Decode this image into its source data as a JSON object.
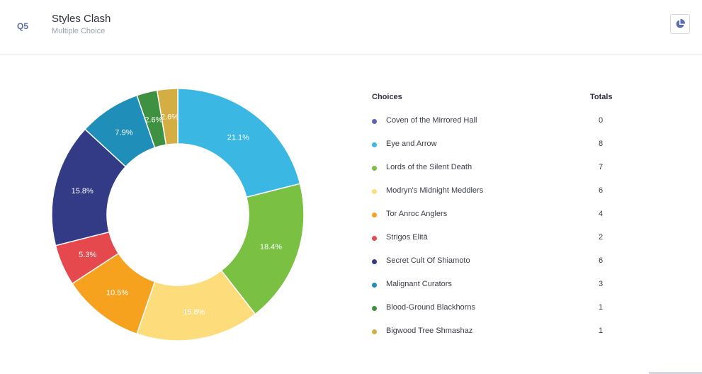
{
  "question": {
    "number": "Q5",
    "title": "Styles Clash",
    "type": "Multiple Choice"
  },
  "toolbar": {
    "chart_toggle_icon": "pie-chart-icon",
    "accent": "#5b6bb5"
  },
  "legend": {
    "choices_header": "Choices",
    "totals_header": "Totals"
  },
  "chart_data": {
    "type": "pie",
    "donut": true,
    "categories": [
      "Coven of the Mirrored Hall",
      "Eye and Arrow",
      "Lords of the Silent Death",
      "Modryn's Midnight Meddlers",
      "Tor Anroc Anglers",
      "Strigos Elitā",
      "Secret Cult Of Shiamoto",
      "Malignant Curators",
      "Blood-Ground Blackhorns",
      "Bigwood Tree Shmashaz"
    ],
    "values": [
      0,
      8,
      7,
      6,
      4,
      2,
      6,
      3,
      1,
      1
    ],
    "labels": [
      "",
      "21.1%",
      "18.4%",
      "15.8%",
      "10.5%",
      "5.3%",
      "15.8%",
      "7.9%",
      "2.6%",
      "2.6%"
    ],
    "colors": [
      "#5e63b6",
      "#3ab7e3",
      "#79c043",
      "#fddc7c",
      "#f6a21e",
      "#e5484d",
      "#333b86",
      "#1f8fb9",
      "#3f9142",
      "#d4ae42"
    ],
    "legend_placement": "right"
  }
}
